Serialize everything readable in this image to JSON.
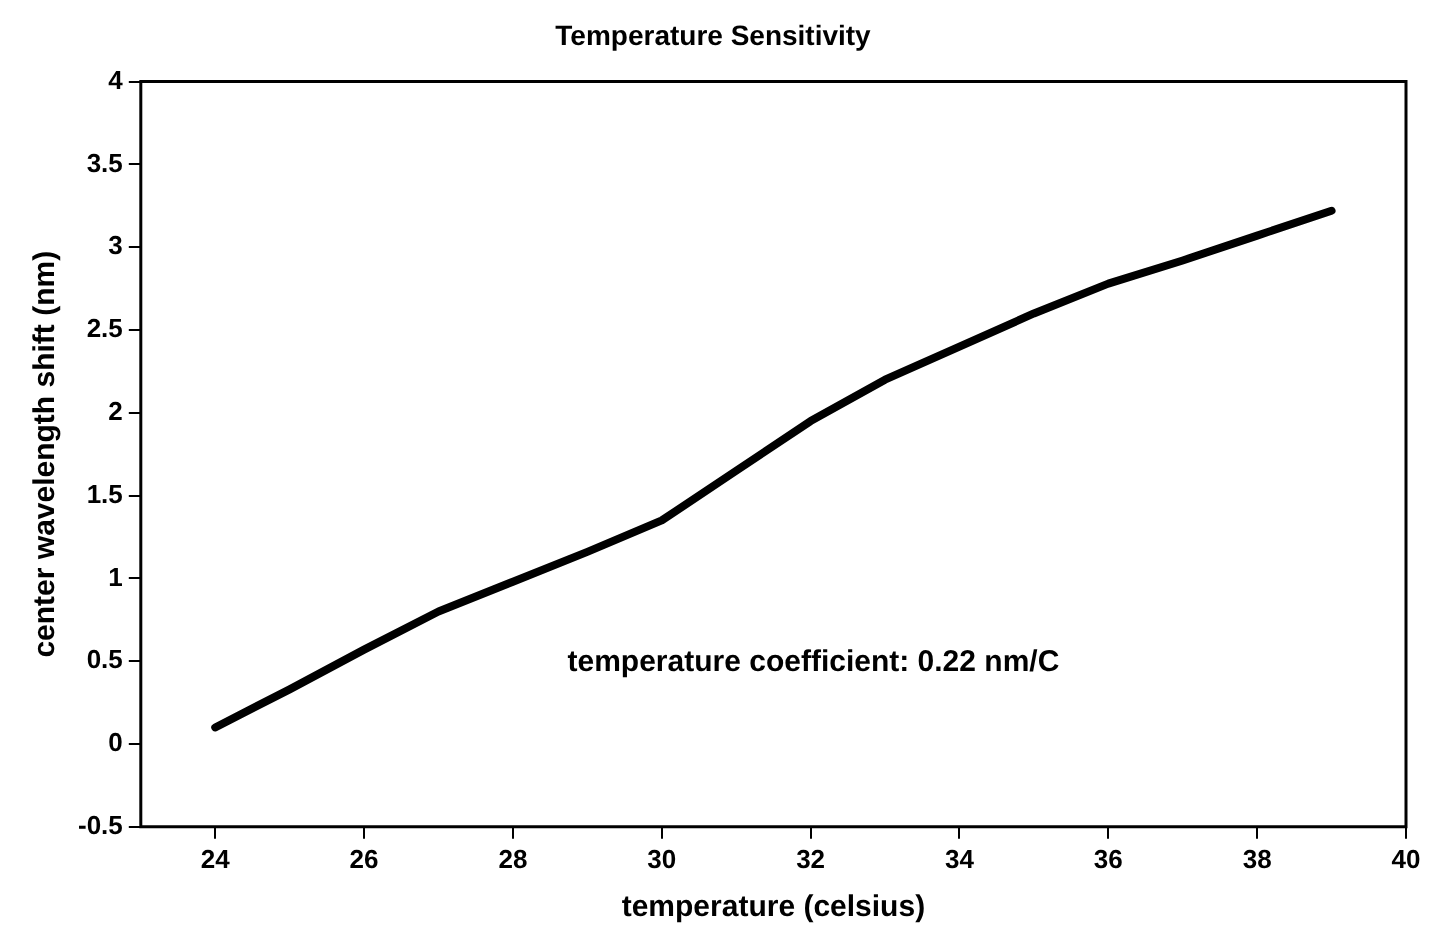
{
  "chart_data": {
    "type": "line",
    "title": "Temperature Sensitivity",
    "xlabel": "temperature (celsius)",
    "ylabel": "center wavelength shift (nm)",
    "annotations": [
      "temperature coefficient: 0.22 nm/C"
    ],
    "x": [
      24,
      25,
      26,
      27,
      28,
      29,
      30,
      31,
      32,
      33,
      34,
      35,
      36,
      37,
      38,
      39
    ],
    "series": [
      {
        "color": "#000000",
        "values": [
          0.1,
          0.33,
          0.57,
          0.8,
          0.98,
          1.16,
          1.35,
          1.65,
          1.95,
          2.2,
          2.4,
          2.6,
          2.78,
          2.92,
          3.07,
          3.22
        ]
      }
    ],
    "xlim": [
      23,
      40
    ],
    "xticks": [
      24,
      26,
      28,
      30,
      32,
      34,
      36,
      38,
      40
    ],
    "ylim": [
      -0.5,
      4
    ],
    "yticks": [
      -0.5,
      0,
      0.5,
      1,
      1.5,
      2,
      2.5,
      3,
      3.5,
      4
    ],
    "grid": false,
    "legend": false,
    "marker": "none",
    "line_style": "solid"
  }
}
